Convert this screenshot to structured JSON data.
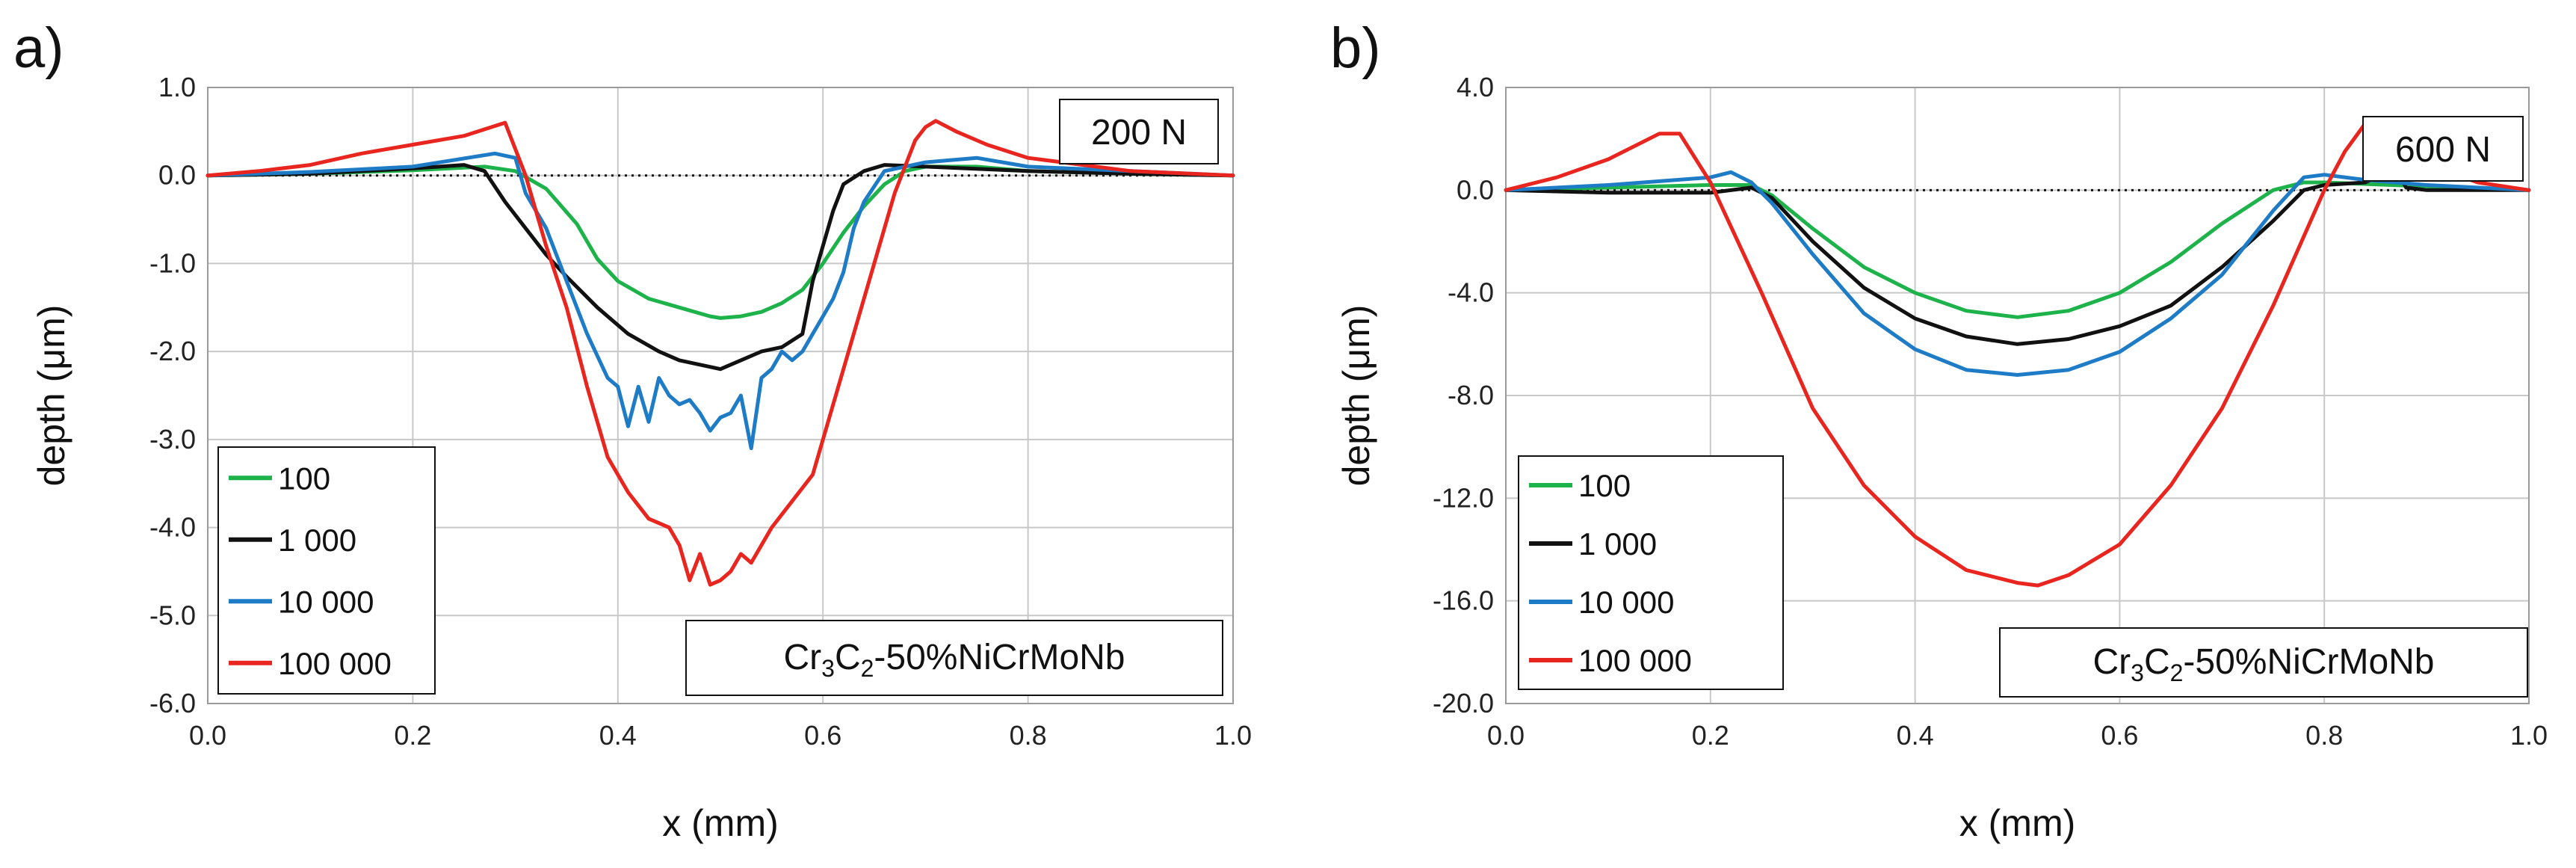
{
  "chart_data": [
    {
      "type": "line",
      "panel_label": "a)",
      "load_label": "200 N",
      "material": {
        "a": "Cr",
        "b": "3",
        "c": "C",
        "d": "2",
        "e": "-50%NiCrMoNb"
      },
      "xlabel": "x (mm)",
      "ylabel": "depth (μm)",
      "xlim": [
        0,
        1
      ],
      "ylim": [
        -6,
        1
      ],
      "xticks": [
        0,
        0.2,
        0.4,
        0.6,
        0.8,
        1
      ],
      "xtick_labels": [
        "0.0",
        "0.2",
        "0.4",
        "0.6",
        "0.8",
        "1.0"
      ],
      "yticks": [
        1,
        0,
        -1,
        -2,
        -3,
        -4,
        -5,
        -6
      ],
      "ytick_labels": [
        "1.0",
        "0.0",
        "-1.0",
        "-2.0",
        "-3.0",
        "-4.0",
        "-5.0",
        "-6.0"
      ],
      "legend": [
        "100",
        "1 000",
        "10 000",
        "100 000"
      ],
      "baseline": 0,
      "series": [
        {
          "name": "100",
          "color": "#1db34a",
          "x": [
            0,
            0.1,
            0.2,
            0.27,
            0.3,
            0.33,
            0.36,
            0.38,
            0.4,
            0.43,
            0.46,
            0.49,
            0.5,
            0.52,
            0.54,
            0.56,
            0.58,
            0.6,
            0.62,
            0.64,
            0.66,
            0.68,
            0.7,
            0.75,
            0.8,
            0.9,
            1.0
          ],
          "y": [
            0,
            0.02,
            0.06,
            0.1,
            0.05,
            -0.15,
            -0.55,
            -0.95,
            -1.2,
            -1.4,
            -1.5,
            -1.6,
            -1.62,
            -1.6,
            -1.55,
            -1.45,
            -1.3,
            -1.0,
            -0.65,
            -0.35,
            -0.1,
            0.05,
            0.1,
            0.1,
            0.05,
            0.02,
            0
          ]
        },
        {
          "name": "1 000",
          "color": "#111111",
          "x": [
            0,
            0.1,
            0.2,
            0.25,
            0.27,
            0.29,
            0.31,
            0.33,
            0.35,
            0.38,
            0.41,
            0.44,
            0.46,
            0.48,
            0.5,
            0.52,
            0.54,
            0.56,
            0.58,
            0.59,
            0.6,
            0.61,
            0.62,
            0.64,
            0.66,
            0.7,
            0.8,
            0.9,
            1.0
          ],
          "y": [
            0,
            0.02,
            0.08,
            0.12,
            0.05,
            -0.3,
            -0.6,
            -0.9,
            -1.15,
            -1.5,
            -1.8,
            -2.0,
            -2.1,
            -2.15,
            -2.2,
            -2.1,
            -2.0,
            -1.95,
            -1.8,
            -1.2,
            -0.8,
            -0.4,
            -0.1,
            0.05,
            0.12,
            0.1,
            0.05,
            0.02,
            0
          ]
        },
        {
          "name": "10 000",
          "color": "#1e7bc6",
          "x": [
            0,
            0.05,
            0.1,
            0.2,
            0.28,
            0.3,
            0.31,
            0.33,
            0.35,
            0.37,
            0.39,
            0.4,
            0.41,
            0.42,
            0.43,
            0.44,
            0.45,
            0.46,
            0.47,
            0.48,
            0.49,
            0.5,
            0.51,
            0.52,
            0.53,
            0.54,
            0.55,
            0.56,
            0.57,
            0.58,
            0.59,
            0.6,
            0.61,
            0.62,
            0.63,
            0.64,
            0.66,
            0.7,
            0.75,
            0.8,
            0.9,
            1.0
          ],
          "y": [
            0,
            0.02,
            0.04,
            0.1,
            0.25,
            0.2,
            -0.2,
            -0.6,
            -1.2,
            -1.8,
            -2.3,
            -2.4,
            -2.85,
            -2.4,
            -2.8,
            -2.3,
            -2.5,
            -2.6,
            -2.55,
            -2.7,
            -2.9,
            -2.75,
            -2.7,
            -2.5,
            -3.1,
            -2.3,
            -2.2,
            -2.0,
            -2.1,
            -2.0,
            -1.8,
            -1.6,
            -1.4,
            -1.1,
            -0.6,
            -0.3,
            0.05,
            0.15,
            0.2,
            0.1,
            0.05,
            0
          ]
        },
        {
          "name": "100 000",
          "color": "#e8251f",
          "x": [
            0,
            0.05,
            0.1,
            0.15,
            0.2,
            0.25,
            0.29,
            0.3,
            0.31,
            0.33,
            0.35,
            0.37,
            0.39,
            0.41,
            0.43,
            0.45,
            0.46,
            0.47,
            0.48,
            0.49,
            0.5,
            0.51,
            0.52,
            0.53,
            0.55,
            0.57,
            0.59,
            0.6,
            0.61,
            0.63,
            0.65,
            0.66,
            0.67,
            0.68,
            0.69,
            0.7,
            0.71,
            0.73,
            0.76,
            0.8,
            0.9,
            1.0
          ],
          "y": [
            0,
            0.05,
            0.12,
            0.25,
            0.35,
            0.45,
            0.6,
            0.3,
            0.0,
            -0.8,
            -1.5,
            -2.4,
            -3.2,
            -3.6,
            -3.9,
            -4.0,
            -4.2,
            -4.6,
            -4.3,
            -4.65,
            -4.6,
            -4.5,
            -4.3,
            -4.4,
            -4.0,
            -3.7,
            -3.4,
            -3.0,
            -2.6,
            -1.8,
            -1.0,
            -0.6,
            -0.2,
            0.1,
            0.4,
            0.55,
            0.62,
            0.5,
            0.35,
            0.2,
            0.05,
            0
          ]
        }
      ]
    },
    {
      "type": "line",
      "panel_label": "b)",
      "load_label": "600 N",
      "material": {
        "a": "Cr",
        "b": "3",
        "c": "C",
        "d": "2",
        "e": "-50%NiCrMoNb"
      },
      "xlabel": "x (mm)",
      "ylabel": "depth (μm)",
      "xlim": [
        0,
        1
      ],
      "ylim": [
        -20,
        4
      ],
      "xticks": [
        0,
        0.2,
        0.4,
        0.6,
        0.8,
        1
      ],
      "xtick_labels": [
        "0.0",
        "0.2",
        "0.4",
        "0.6",
        "0.8",
        "1.0"
      ],
      "yticks": [
        4,
        0,
        -4,
        -8,
        -12,
        -16,
        -20
      ],
      "ytick_labels": [
        "4.0",
        "0.0",
        "-4.0",
        "-8.0",
        "-12.0",
        "-16.0",
        "-20.0"
      ],
      "legend": [
        "100",
        "1 000",
        "10 000",
        "100 000"
      ],
      "baseline": 0,
      "series": [
        {
          "name": "100",
          "color": "#1db34a",
          "x": [
            0,
            0.1,
            0.2,
            0.24,
            0.26,
            0.3,
            0.35,
            0.4,
            0.45,
            0.5,
            0.55,
            0.6,
            0.65,
            0.7,
            0.75,
            0.78,
            0.8,
            0.9,
            1.0
          ],
          "y": [
            0,
            0.1,
            0.2,
            0.2,
            -0.2,
            -1.5,
            -3.0,
            -4.0,
            -4.7,
            -4.95,
            -4.7,
            -4.0,
            -2.8,
            -1.3,
            0.0,
            0.3,
            0.3,
            0.15,
            0
          ]
        },
        {
          "name": "1 000",
          "color": "#111111",
          "x": [
            0,
            0.1,
            0.2,
            0.24,
            0.26,
            0.3,
            0.35,
            0.4,
            0.45,
            0.5,
            0.55,
            0.6,
            0.65,
            0.7,
            0.75,
            0.78,
            0.8,
            0.84,
            0.87,
            0.88,
            0.9,
            1.0
          ],
          "y": [
            0,
            -0.1,
            -0.1,
            0.1,
            -0.3,
            -2.0,
            -3.8,
            -5.0,
            -5.7,
            -6.0,
            -5.8,
            -5.3,
            -4.5,
            -3.0,
            -1.2,
            0.0,
            0.2,
            0.3,
            0.8,
            0.1,
            0.0,
            0
          ]
        },
        {
          "name": "10 000",
          "color": "#1e7bc6",
          "x": [
            0,
            0.1,
            0.2,
            0.22,
            0.24,
            0.26,
            0.3,
            0.35,
            0.4,
            0.45,
            0.5,
            0.55,
            0.6,
            0.65,
            0.7,
            0.75,
            0.78,
            0.8,
            0.84,
            0.9,
            1.0
          ],
          "y": [
            0,
            0.2,
            0.5,
            0.7,
            0.3,
            -0.5,
            -2.5,
            -4.8,
            -6.2,
            -7.0,
            -7.2,
            -7.0,
            -6.3,
            -5.0,
            -3.3,
            -0.8,
            0.5,
            0.6,
            0.4,
            0.2,
            0
          ]
        },
        {
          "name": "100 000",
          "color": "#e8251f",
          "x": [
            0,
            0.05,
            0.1,
            0.15,
            0.17,
            0.2,
            0.25,
            0.3,
            0.35,
            0.4,
            0.45,
            0.5,
            0.52,
            0.55,
            0.6,
            0.65,
            0.7,
            0.75,
            0.8,
            0.82,
            0.84,
            0.86,
            0.9,
            0.95,
            1.0
          ],
          "y": [
            0,
            0.5,
            1.2,
            2.2,
            2.2,
            0.3,
            -4.0,
            -8.5,
            -11.5,
            -13.5,
            -14.8,
            -15.3,
            -15.4,
            -15.0,
            -13.8,
            -11.5,
            -8.5,
            -4.5,
            0.0,
            1.5,
            2.6,
            2.8,
            1.0,
            0.3,
            0
          ]
        }
      ]
    }
  ]
}
